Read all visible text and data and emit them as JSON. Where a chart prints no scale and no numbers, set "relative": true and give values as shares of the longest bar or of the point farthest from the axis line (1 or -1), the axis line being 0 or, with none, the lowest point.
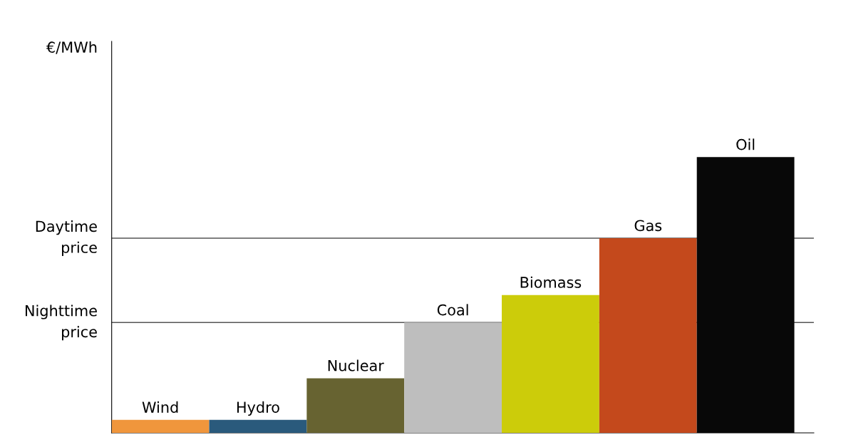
{
  "chart_data": {
    "type": "bar",
    "relative": true,
    "annotations": [
      "€/MWh"
    ],
    "categories": [
      "Wind",
      "Hydro",
      "Nuclear",
      "Coal",
      "Biomass",
      "Gas",
      "Oil"
    ],
    "values": [
      0.047,
      0.047,
      0.198,
      0.4,
      0.5,
      0.706,
      1
    ],
    "colors": [
      "#f0963c",
      "#2a5a7c",
      "#676331",
      "#bebebe",
      "#cccc0a",
      "#c4491c",
      "#080808"
    ],
    "ref_lines": [
      {
        "axis": "y",
        "value": 0.706,
        "label": "Daytime\nprice",
        "color": "#555555"
      },
      {
        "axis": "y",
        "value": 0.4,
        "label": "Nighttime\nprice",
        "color": "#555555"
      }
    ],
    "legend": false
  }
}
